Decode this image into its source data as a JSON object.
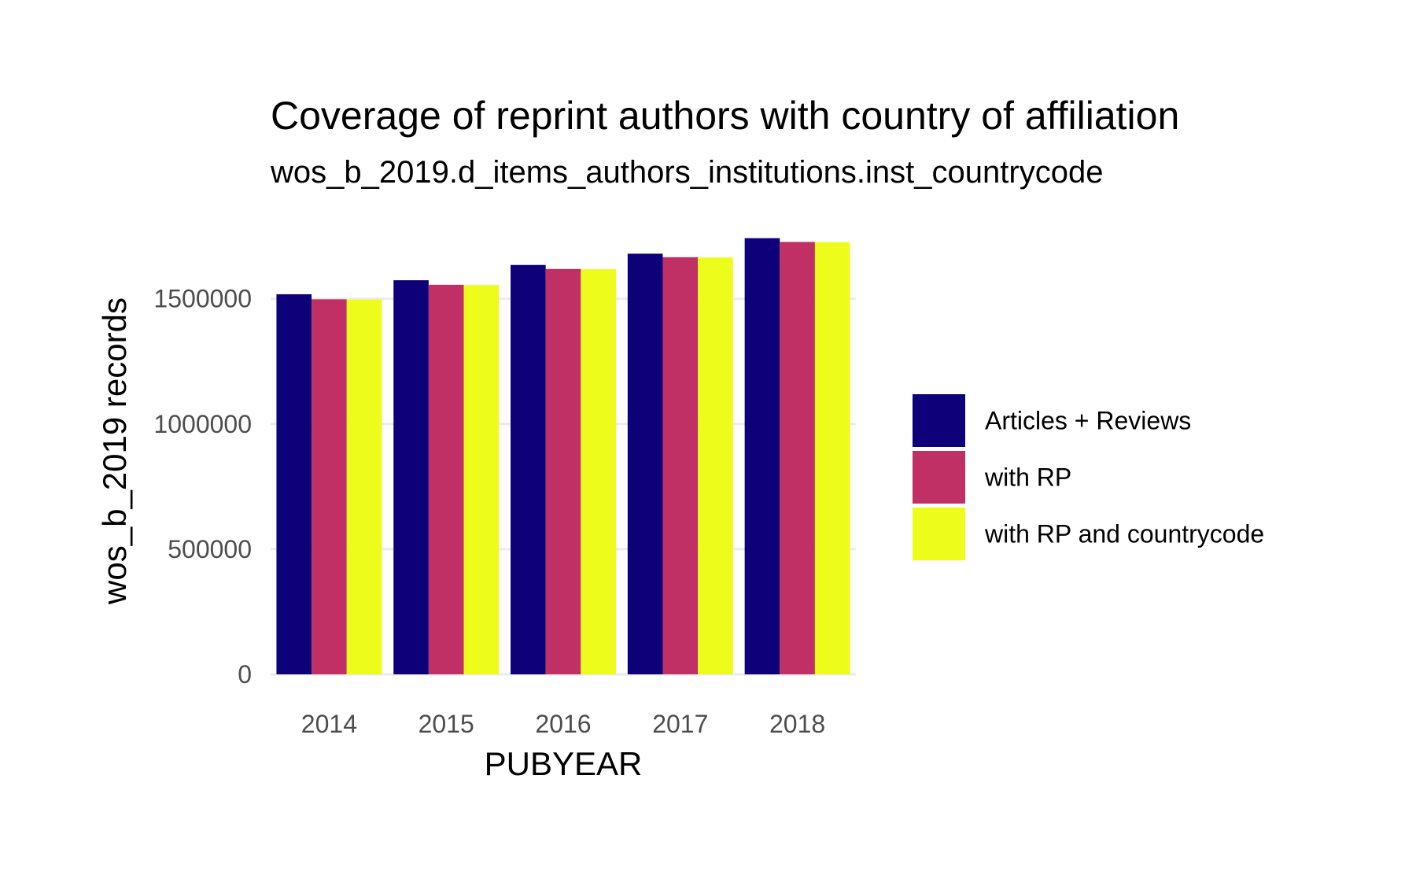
{
  "chart_data": {
    "type": "bar",
    "title": "Coverage of reprint authors with country of affiliation",
    "subtitle": "wos_b_2019.d_items_authors_institutions.inst_countrycode",
    "xlabel": "PUBYEAR",
    "ylabel": "wos_b_2019 records",
    "categories": [
      "2014",
      "2015",
      "2016",
      "2017",
      "2018"
    ],
    "series": [
      {
        "name": "Articles + Reviews",
        "color": "#0d0078",
        "values": [
          1518000,
          1574000,
          1635000,
          1680000,
          1742000
        ]
      },
      {
        "name": "with RP",
        "color": "#c03064",
        "values": [
          1498000,
          1556000,
          1619000,
          1666000,
          1727000
        ]
      },
      {
        "name": "with RP and countrycode",
        "color": "#edfc1b",
        "values": [
          1497000,
          1555000,
          1618000,
          1665000,
          1726000
        ]
      }
    ],
    "yticks": [
      0,
      500000,
      1000000,
      1500000
    ],
    "ytick_labels": [
      "0",
      "500000",
      "1000000",
      "1500000"
    ],
    "ylim": [
      0,
      1829000
    ],
    "grid": true,
    "grid_color": "#ebebeb",
    "legend_position": "right"
  }
}
